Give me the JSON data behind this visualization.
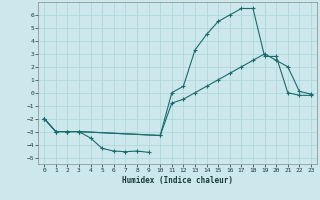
{
  "xlabel": "Humidex (Indice chaleur)",
  "background_color": "#cde8ec",
  "grid_color": "#b0d8dc",
  "line_color": "#1a6b6b",
  "xlim": [
    -0.5,
    23.5
  ],
  "ylim": [
    -5.5,
    7.0
  ],
  "xticks": [
    0,
    1,
    2,
    3,
    4,
    5,
    6,
    7,
    8,
    9,
    10,
    11,
    12,
    13,
    14,
    15,
    16,
    17,
    18,
    19,
    20,
    21,
    22,
    23
  ],
  "yticks": [
    -5,
    -4,
    -3,
    -2,
    -1,
    0,
    1,
    2,
    3,
    4,
    5,
    6
  ],
  "line1_x": [
    0,
    1,
    2,
    3,
    4,
    5,
    6,
    7,
    8,
    9
  ],
  "line1_y": [
    -2.0,
    -3.0,
    -3.0,
    -3.0,
    -3.5,
    -4.3,
    -4.5,
    -4.55,
    -4.5,
    -4.6
  ],
  "line2_x": [
    0,
    1,
    2,
    3,
    10,
    11,
    12,
    13,
    14,
    15,
    16,
    17,
    18,
    19,
    20,
    21,
    22,
    23
  ],
  "line2_y": [
    -2.0,
    -3.0,
    -3.0,
    -3.0,
    -3.3,
    0.0,
    0.5,
    3.3,
    4.5,
    5.5,
    6.0,
    6.5,
    6.5,
    2.8,
    2.8,
    0.0,
    -0.2,
    -0.2
  ],
  "line3_x": [
    0,
    1,
    2,
    3,
    10,
    11,
    12,
    13,
    14,
    15,
    16,
    17,
    18,
    19,
    20,
    21,
    22,
    23
  ],
  "line3_y": [
    -2.0,
    -3.0,
    -3.0,
    -3.0,
    -3.3,
    -0.8,
    -0.5,
    0.0,
    0.5,
    1.0,
    1.5,
    2.0,
    2.5,
    3.0,
    2.5,
    2.0,
    0.1,
    -0.1
  ]
}
